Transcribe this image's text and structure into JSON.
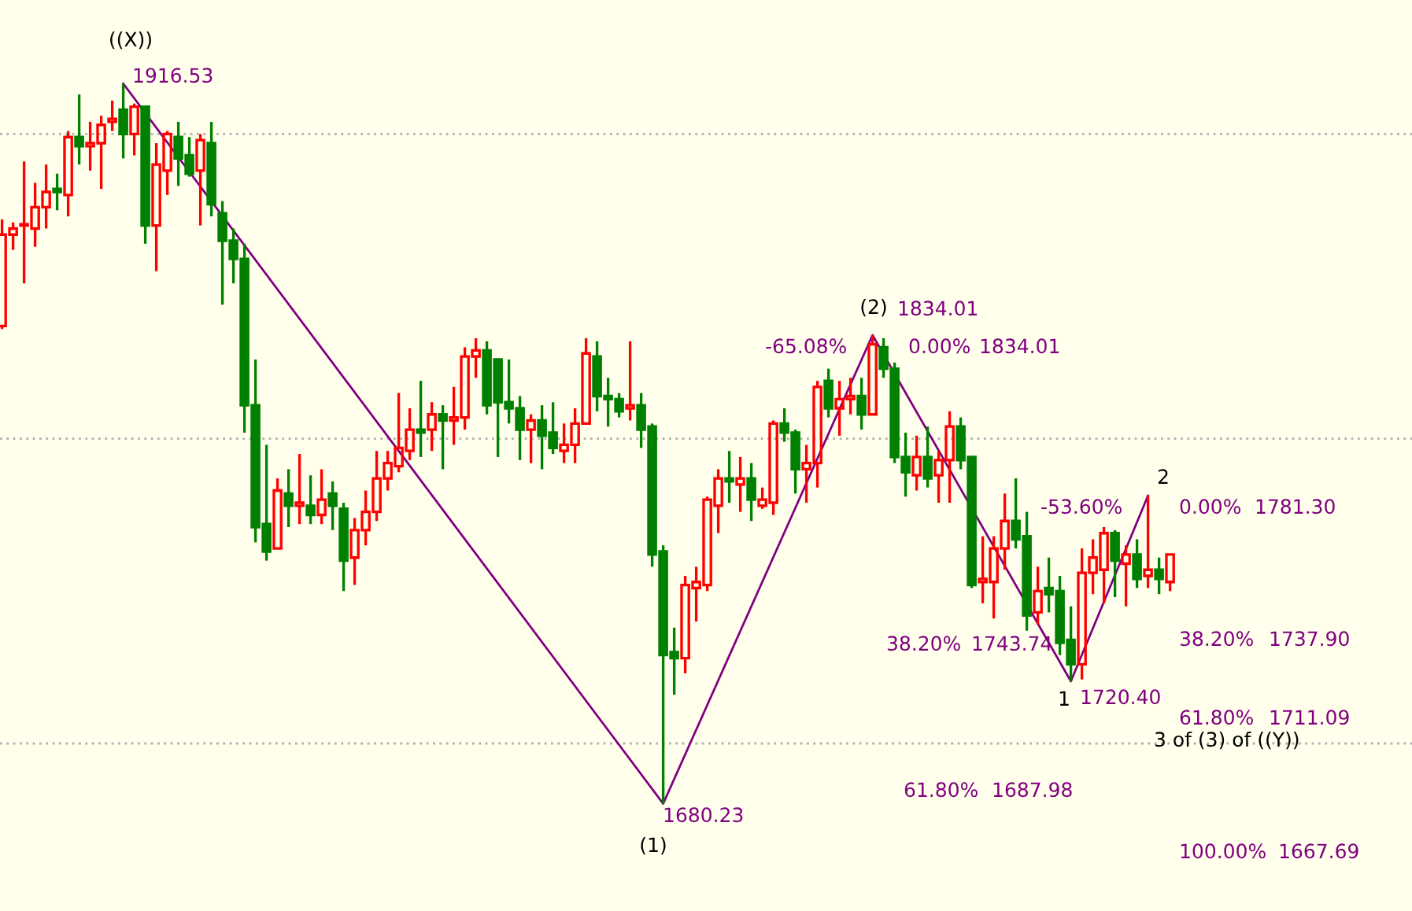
{
  "chart_data": {
    "type": "candlestick",
    "categories": [
      null,
      null,
      null,
      null,
      null,
      null,
      null,
      null,
      null,
      null,
      null,
      null,
      null,
      null,
      null,
      null,
      null,
      null,
      null,
      null,
      null,
      null,
      null,
      null,
      null,
      null,
      null,
      null,
      null,
      null,
      null,
      null,
      null,
      null,
      null,
      null,
      null,
      null,
      null,
      null,
      null,
      null,
      null,
      null,
      null,
      null,
      null,
      null,
      null,
      null,
      null,
      null,
      null,
      null,
      null,
      null,
      null,
      null,
      null,
      null,
      null,
      null,
      null,
      null,
      null,
      null,
      null,
      null,
      null,
      null,
      null,
      null,
      null,
      null,
      null,
      null,
      null,
      null,
      null,
      null,
      null,
      null,
      null,
      null,
      null,
      null,
      null,
      null,
      null,
      null,
      null,
      null,
      null,
      null,
      null,
      null,
      null,
      null,
      null,
      null,
      null,
      null,
      null,
      null,
      null,
      null,
      null
    ],
    "ohlc": [
      [
        1837,
        1872,
        1836,
        1867
      ],
      [
        1867,
        1871,
        1862,
        1869
      ],
      [
        1870,
        1891,
        1851,
        1870
      ],
      [
        1869,
        1884,
        1863,
        1876
      ],
      [
        1876,
        1890,
        1869,
        1881
      ],
      [
        1882,
        1887,
        1875,
        1881
      ],
      [
        1880,
        1901,
        1873,
        1899
      ],
      [
        1899,
        1913,
        1890,
        1896
      ],
      [
        1896,
        1904,
        1888,
        1897
      ],
      [
        1897,
        1906,
        1882,
        1903
      ],
      [
        1904,
        1911,
        1901,
        1905
      ],
      [
        1908,
        1916.53,
        1892,
        1900
      ],
      [
        1900,
        1910,
        1893,
        1909
      ],
      [
        1909,
        1909,
        1864,
        1870
      ],
      [
        1870,
        1897,
        1855,
        1890
      ],
      [
        1888,
        1901,
        1880,
        1900
      ],
      [
        1899,
        1904,
        1883,
        1892
      ],
      [
        1893,
        1899,
        1886,
        1887
      ],
      [
        1888,
        1900,
        1870,
        1898
      ],
      [
        1897,
        1904,
        1873,
        1877
      ],
      [
        1874,
        1878,
        1844,
        1865
      ],
      [
        1865,
        1869,
        1851,
        1859
      ],
      [
        1859,
        1864,
        1802,
        1811
      ],
      [
        1811,
        1826,
        1766,
        1771
      ],
      [
        1772,
        1798,
        1760,
        1763
      ],
      [
        1764,
        1787,
        1764,
        1783
      ],
      [
        1782,
        1790,
        1771,
        1778
      ],
      [
        1778,
        1795,
        1772,
        1779
      ],
      [
        1778,
        1788,
        1772,
        1775
      ],
      [
        1775,
        1790,
        1772,
        1780
      ],
      [
        1782,
        1786,
        1770,
        1778
      ],
      [
        1777,
        1779,
        1750,
        1760
      ],
      [
        1761,
        1774,
        1752,
        1770
      ],
      [
        1770,
        1783,
        1765,
        1776
      ],
      [
        1776,
        1796,
        1773,
        1787
      ],
      [
        1787,
        1796,
        1783,
        1792
      ],
      [
        1791,
        1815,
        1789,
        1797
      ],
      [
        1796,
        1810,
        1793,
        1803
      ],
      [
        1803,
        1819,
        1794,
        1802
      ],
      [
        1803,
        1812,
        1796,
        1808
      ],
      [
        1808,
        1811,
        1790,
        1806
      ],
      [
        1806,
        1817,
        1798,
        1807
      ],
      [
        1807,
        1830,
        1803,
        1827
      ],
      [
        1827,
        1833,
        1820,
        1829
      ],
      [
        1829,
        1832,
        1808,
        1811
      ],
      [
        1826,
        1826,
        1794,
        1812
      ],
      [
        1812,
        1826,
        1805,
        1810
      ],
      [
        1810,
        1814,
        1793,
        1803
      ],
      [
        1803,
        1808,
        1792,
        1806
      ],
      [
        1806,
        1811,
        1790,
        1801
      ],
      [
        1802,
        1812,
        1795,
        1797
      ],
      [
        1796,
        1805,
        1792,
        1798
      ],
      [
        1798,
        1810,
        1792,
        1805
      ],
      [
        1805,
        1833,
        1805,
        1828
      ],
      [
        1827,
        1832,
        1809,
        1814
      ],
      [
        1814,
        1820,
        1804,
        1813
      ],
      [
        1813,
        1815,
        1807,
        1809
      ],
      [
        1810,
        1832,
        1806,
        1811
      ],
      [
        1811,
        1815,
        1797,
        1803
      ],
      [
        1804,
        1805,
        1758,
        1762
      ],
      [
        1763,
        1765,
        1680.23,
        1729
      ],
      [
        1730,
        1738,
        1716,
        1728
      ],
      [
        1728,
        1755,
        1723,
        1752
      ],
      [
        1751,
        1758,
        1740,
        1753
      ],
      [
        1752,
        1781,
        1750,
        1780
      ],
      [
        1778,
        1790,
        1769,
        1787
      ],
      [
        1787,
        1796,
        1779,
        1786
      ],
      [
        1785,
        1794,
        1776,
        1787
      ],
      [
        1787,
        1792,
        1773,
        1780
      ],
      [
        1778,
        1784,
        1777,
        1780
      ],
      [
        1779,
        1806,
        1775,
        1805
      ],
      [
        1805,
        1810,
        1799,
        1802
      ],
      [
        1802,
        1803,
        1782,
        1790
      ],
      [
        1790,
        1798,
        1779,
        1792
      ],
      [
        1792,
        1819,
        1784,
        1817
      ],
      [
        1819,
        1823,
        1807,
        1810
      ],
      [
        1810,
        1819,
        1801,
        1813
      ],
      [
        1813,
        1820,
        1808,
        1814
      ],
      [
        1814,
        1820,
        1803,
        1808
      ],
      [
        1808,
        1834.01,
        1808,
        1831
      ],
      [
        1830,
        1833,
        1820,
        1823
      ],
      [
        1823,
        1825,
        1792,
        1794
      ],
      [
        1794,
        1802,
        1781,
        1789
      ],
      [
        1788,
        1801,
        1783,
        1794
      ],
      [
        1794,
        1804,
        1784,
        1787
      ],
      [
        1788,
        1796,
        1779,
        1793
      ],
      [
        1793,
        1809,
        1779,
        1804
      ],
      [
        1804,
        1807,
        1790,
        1793
      ],
      [
        1794,
        1794,
        1751,
        1752
      ],
      [
        1753,
        1768,
        1746,
        1754
      ],
      [
        1753,
        1768,
        1741,
        1764
      ],
      [
        1764,
        1782,
        1757,
        1773
      ],
      [
        1773,
        1787,
        1764,
        1767
      ],
      [
        1768,
        1776,
        1737,
        1742
      ],
      [
        1743,
        1758,
        1739,
        1750
      ],
      [
        1751,
        1761,
        1743,
        1749
      ],
      [
        1750,
        1755,
        1729,
        1733
      ],
      [
        1734,
        1745,
        1720.4,
        1726
      ],
      [
        1726,
        1764,
        1721,
        1756
      ],
      [
        1756,
        1767,
        1749,
        1761
      ],
      [
        1757,
        1771,
        1746,
        1769
      ],
      [
        1769,
        1770,
        1748,
        1760
      ],
      [
        1759,
        1765,
        1745,
        1762
      ],
      [
        1762,
        1767,
        1751,
        1754
      ],
      [
        1755,
        1781.3,
        1751,
        1757
      ],
      [
        1757,
        1761,
        1749,
        1754
      ],
      [
        1753,
        1762,
        1750,
        1762
      ]
    ],
    "colors": [
      "#ff0000",
      "#ff0000",
      "#ff0000",
      "#ff0000",
      "#ff0000",
      "#008000",
      "#ff0000",
      "#008000",
      "#ff0000",
      "#ff0000",
      "#ff0000",
      "#008000",
      "#ff0000",
      "#008000",
      "#ff0000",
      "#ff0000",
      "#008000",
      "#008000",
      "#ff0000",
      "#008000",
      "#008000",
      "#008000",
      "#008000",
      "#008000",
      "#008000",
      "#ff0000",
      "#008000",
      "#ff0000",
      "#008000",
      "#ff0000",
      "#008000",
      "#008000",
      "#ff0000",
      "#ff0000",
      "#ff0000",
      "#ff0000",
      "#ff0000",
      "#ff0000",
      "#008000",
      "#ff0000",
      "#008000",
      "#ff0000",
      "#ff0000",
      "#ff0000",
      "#008000",
      "#008000",
      "#008000",
      "#008000",
      "#ff0000",
      "#008000",
      "#008000",
      "#ff0000",
      "#ff0000",
      "#ff0000",
      "#008000",
      "#008000",
      "#008000",
      "#ff0000",
      "#008000",
      "#008000",
      "#008000",
      "#008000",
      "#ff0000",
      "#ff0000",
      "#ff0000",
      "#ff0000",
      "#008000",
      "#ff0000",
      "#008000",
      "#ff0000",
      "#ff0000",
      "#008000",
      "#008000",
      "#ff0000",
      "#ff0000",
      "#008000",
      "#ff0000",
      "#ff0000",
      "#008000",
      "#ff0000",
      "#008000",
      "#008000",
      "#008000",
      "#ff0000",
      "#008000",
      "#ff0000",
      "#ff0000",
      "#008000",
      "#008000",
      "#ff0000",
      "#ff0000",
      "#ff0000",
      "#008000",
      "#008000",
      "#ff0000",
      "#008000",
      "#008000",
      "#008000",
      "#ff0000",
      "#ff0000",
      "#ff0000",
      "#008000",
      "#ff0000",
      "#008000",
      "#ff0000",
      "#008000",
      "#ff0000"
    ],
    "series": [
      {
        "type": "line",
        "values": [
          null,
          null,
          null,
          null,
          null,
          null,
          null,
          null,
          null,
          null,
          null,
          1916.53,
          null,
          null,
          null,
          null,
          null,
          null,
          null,
          null,
          null,
          null,
          null,
          null,
          null,
          null,
          null,
          null,
          null,
          null,
          null,
          null,
          null,
          null,
          null,
          null,
          null,
          null,
          null,
          null,
          null,
          null,
          null,
          null,
          null,
          null,
          null,
          null,
          null,
          null,
          null,
          null,
          null,
          null,
          null,
          null,
          null,
          null,
          null,
          null,
          1680.23,
          null,
          null,
          null,
          null,
          null,
          null,
          null,
          null,
          null,
          null,
          null,
          null,
          null,
          null,
          null,
          null,
          null,
          null,
          1834.01,
          null,
          null,
          null,
          null,
          null,
          null,
          null,
          null,
          null,
          null,
          null,
          null,
          null,
          null,
          null,
          null,
          null,
          1720.4,
          null,
          null,
          null,
          null,
          null,
          null,
          1781.3,
          null,
          null
        ],
        "color": "#800080"
      }
    ],
    "ylim": [
      1645,
      1944
    ],
    "yticks": [
      {
        "value": 1700,
        "label": null
      },
      {
        "value": 1800,
        "label": null
      },
      {
        "value": 1900,
        "label": null
      }
    ],
    "grid": "y",
    "annotations": [
      "((X))",
      "1916.53",
      "(1)",
      "1680.23",
      "(2)",
      "1834.01",
      "-65.08%",
      "0.00%",
      "1834.01",
      "38.20%",
      "1743.74",
      "61.80%",
      "1687.98",
      "1",
      "1720.40",
      "-53.60%",
      "2",
      "0.00%",
      "1781.30",
      "38.20%",
      "1737.90",
      "61.80%",
      "1711.09",
      "3 of (3) of ((Y))",
      "100.00%",
      "1667.69"
    ]
  }
}
